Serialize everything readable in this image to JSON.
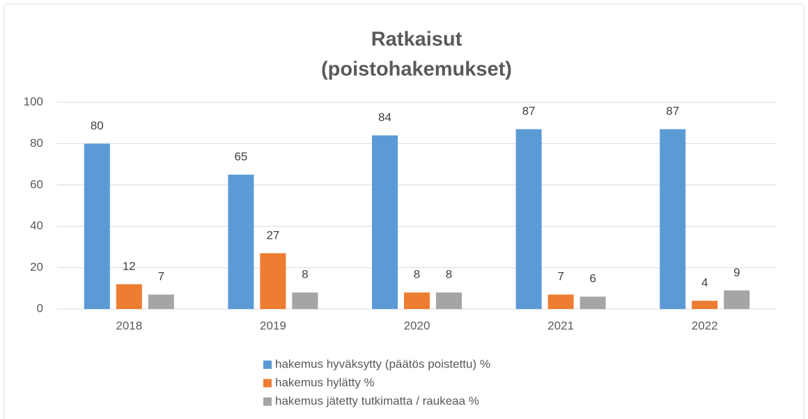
{
  "chart_data": {
    "type": "bar",
    "title": [
      "Ratkaisut",
      "(poistohakemukset)"
    ],
    "categories": [
      "2018",
      "2019",
      "2020",
      "2021",
      "2022"
    ],
    "series": [
      {
        "name": "hakemus hyväksytty (päätös poistettu) %",
        "color": "#5b9bd5",
        "values": [
          80,
          65,
          84,
          87,
          87
        ]
      },
      {
        "name": "hakemus hylätty %",
        "color": "#ed7d31",
        "values": [
          12,
          27,
          8,
          7,
          4
        ]
      },
      {
        "name": "hakemus jätetty tutkimatta / raukeaa %",
        "color": "#a5a5a5",
        "values": [
          7,
          8,
          8,
          6,
          9
        ]
      }
    ],
    "ylim": [
      0,
      100
    ],
    "yticks": [
      0,
      20,
      40,
      60,
      80,
      100
    ],
    "grid": true,
    "legend": "bottom"
  }
}
